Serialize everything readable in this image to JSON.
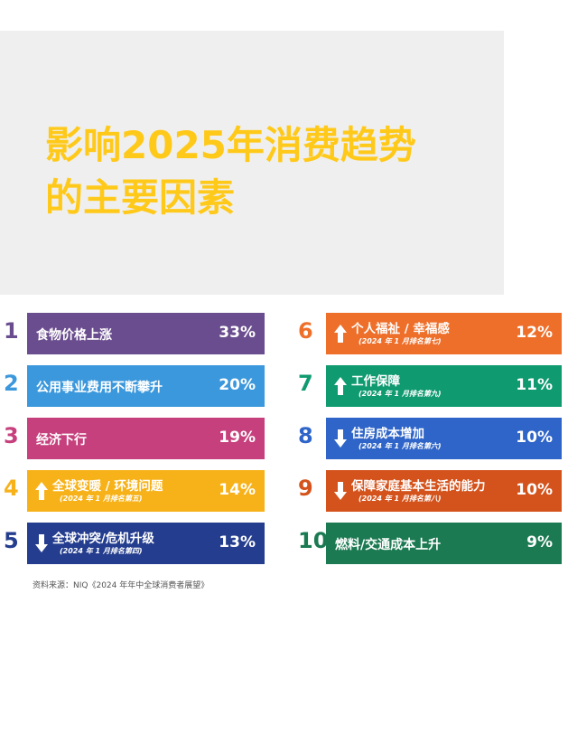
{
  "title_lines": [
    "影响2025年消费趋势",
    "的主要因素"
  ],
  "colors": {
    "title": "#ffc91a",
    "header_bg": "#efefef"
  },
  "chart_data": {
    "type": "table",
    "title": "影响2025年消费趋势的主要因素",
    "value_unit": "%",
    "items": [
      {
        "rank": "1",
        "label": "食物价格上涨",
        "value": 33,
        "value_label": "33%",
        "note": "",
        "arrow": "",
        "color": "#6a4d8e"
      },
      {
        "rank": "2",
        "label": "公用事业费用不断攀升",
        "value": 20,
        "value_label": "20%",
        "note": "",
        "arrow": "",
        "color": "#3c98dc"
      },
      {
        "rank": "3",
        "label": "经济下行",
        "value": 19,
        "value_label": "19%",
        "note": "",
        "arrow": "",
        "color": "#c6407d"
      },
      {
        "rank": "4",
        "label": "全球变暖 / 环境问题",
        "value": 14,
        "value_label": "14%",
        "note": "(2024 年 1 月排名第五)",
        "arrow": "up",
        "color": "#f7b21a"
      },
      {
        "rank": "5",
        "label": "全球冲突/危机升级",
        "value": 13,
        "value_label": "13%",
        "note": "(2024 年 1 月排名第四)",
        "arrow": "down",
        "color": "#243d8e"
      },
      {
        "rank": "6",
        "label": "个人福祉 / 幸福感",
        "value": 12,
        "value_label": "12%",
        "note": "(2024 年 1 月排名第七)",
        "arrow": "up",
        "color": "#ee6f2a"
      },
      {
        "rank": "7",
        "label": "工作保障",
        "value": 11,
        "value_label": "11%",
        "note": "(2024 年 1 月排名第九)",
        "arrow": "up",
        "color": "#0f9a70"
      },
      {
        "rank": "8",
        "label": "住房成本增加",
        "value": 10,
        "value_label": "10%",
        "note": "(2024 年 1 月排名第六)",
        "arrow": "down",
        "color": "#2f65c8"
      },
      {
        "rank": "9",
        "label": "保障家庭基本生活的能力",
        "value": 10,
        "value_label": "10%",
        "note": "(2024 年 1 月排名第八)",
        "arrow": "down",
        "color": "#d4531c"
      },
      {
        "rank": "10",
        "label": "燃料/交通成本上升",
        "value": 9,
        "value_label": "9%",
        "note": "",
        "arrow": "",
        "color": "#1c7a52"
      }
    ]
  },
  "source_text": "资料来源：NIQ《2024 年年中全球消费者展望》"
}
